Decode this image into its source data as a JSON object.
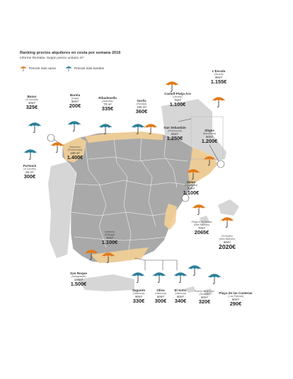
{
  "title": "Ranking precios alquileres en costa por semana  2016",
  "subtitle": "Informe Rentalia. Según precio unitario m²",
  "legend": {
    "expensive_label": "Precios más caros",
    "cheap_label": "Precios más baratos",
    "expensive_color": "#e07a1a",
    "cheap_color": "#2d7f9a"
  },
  "colors": {
    "land": "#a9a9a9",
    "neighbour_land": "#d6d6d6",
    "coast_highlight": "#f2cf96",
    "borders": "#ffffff"
  },
  "locations": [
    {
      "id": "baiuo",
      "name": "Baiuo",
      "region": "(A Coruña)",
      "size": "40m²",
      "price": "325€",
      "type": "cheap"
    },
    {
      "id": "portosin",
      "name": "Portosín",
      "region": "(A Coruña)",
      "size": "50 m²",
      "price": "300€",
      "type": "cheap"
    },
    {
      "id": "burela",
      "name": "Burela",
      "region": "(Lugo)",
      "size": "60m²",
      "price": "200€",
      "type": "cheap"
    },
    {
      "id": "ribadesella",
      "name": "Ribadesella",
      "region": "(Asturias)",
      "size": "70 m²",
      "price": "335€",
      "type": "cheap"
    },
    {
      "id": "gorliz",
      "name": "Gorliz",
      "region": "(Vizcaya)",
      "size": "100 m²",
      "price": "360€",
      "type": "cheap"
    },
    {
      "id": "sanxenxo",
      "name": "Sanxenxo",
      "region": "(Pontevedra)",
      "size": "100 m²",
      "price": "1.400€",
      "type": "expensive"
    },
    {
      "id": "san-sebastian",
      "name": "San Sebastián",
      "region": "(Guipúzcoa)",
      "size": "55m²",
      "price": "1.250€",
      "type": "expensive"
    },
    {
      "id": "castell-platja-aro",
      "name": "Castell-Platja Aro",
      "region": "(Girona)",
      "size": "75m²",
      "price": "1.100€",
      "type": "expensive"
    },
    {
      "id": "lescala",
      "name": "L'Escala",
      "region": "(Girona)",
      "size": "90m²",
      "price": "1.155€",
      "type": "expensive"
    },
    {
      "id": "sitges",
      "name": "Sitges",
      "region": "(Barcelona)",
      "size": "90m²",
      "price": "1.200€",
      "type": "expensive"
    },
    {
      "id": "salou",
      "name": "Salou",
      "region": "(Tarragona)",
      "size": "60m²",
      "price": "1.100€",
      "type": "expensive"
    },
    {
      "id": "platja-den-bossa",
      "name": "Platja D'En Bossa",
      "region": "(Illes Balears)",
      "size": "70m²",
      "price": "2065€",
      "type": "expensive"
    },
    {
      "id": "es-bolero",
      "name": "Es Bolero",
      "region": "(Illes Balears)",
      "size": "60m²",
      "price": "2020€",
      "type": "expensive"
    },
    {
      "id": "marbella",
      "name": "Marbella",
      "region": "(Málaga)",
      "size": "40m²",
      "price": "1.100€",
      "type": "expensive"
    },
    {
      "id": "san-roque",
      "name": "San Roque",
      "region": "(Sotogrande)",
      "size": "150m²",
      "price": "1.500€",
      "type": "expensive"
    },
    {
      "id": "sagunto",
      "name": "Sagunto",
      "region": "(Valencia)",
      "size": "90m²",
      "price": "330€",
      "type": "cheap"
    },
    {
      "id": "oliva",
      "name": "Oliva",
      "region": "(Valencia)",
      "size": "60m²",
      "price": "300€",
      "type": "cheap"
    },
    {
      "id": "el-sotio",
      "name": "El Sotio",
      "region": "(Valencia)",
      "size": "80m²",
      "price": "340€",
      "type": "cheap"
    },
    {
      "id": "puerto-de-la-cruz",
      "name": "Puerto de la Cruz",
      "region": "(Tenerife)",
      "size": "50m²",
      "price": "320€",
      "type": "cheap"
    },
    {
      "id": "playa-canteras",
      "name": "Playa de las Canteras",
      "region": "( Las Palmas)",
      "size": "60m²",
      "price": "290€",
      "type": "cheap"
    }
  ]
}
